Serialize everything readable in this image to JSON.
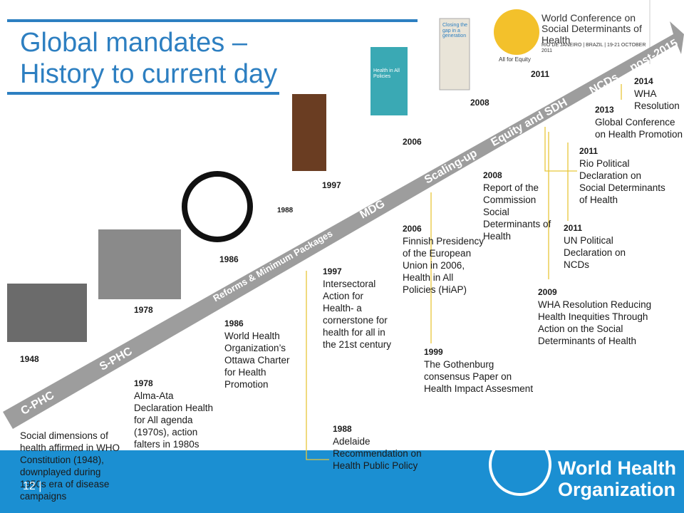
{
  "slide": {
    "title": [
      "Global mandates –",
      "History to current day"
    ],
    "timeline_labels": [
      "C-PHC",
      "S-PHC",
      "Reforms & Minimum Packages",
      "MDG",
      "Scaling-up",
      "Equity and SDH",
      "NCDs",
      "post-2015"
    ],
    "image_years": [
      "1948",
      "1978",
      "1986",
      "1988",
      "1997",
      "2006",
      "2008",
      "2011"
    ],
    "image_texts": [
      "Health in All Policies",
      "Closing the gap in a generation",
      "World Conference on Social Determinants of Health",
      "RIO DE JANEIRO | BRAZIL | 19-21 OCTOBER 2011",
      "All for Equity"
    ],
    "events": [
      {
        "year": null,
        "text": "Social dimensions of health affirmed in WHO Constitution (1948), downplayed during 1950s era of disease campaigns"
      },
      {
        "year": "1978",
        "text": "Alma-Ata Declaration Health for All agenda (1970s), action falters in 1980s"
      },
      {
        "year": "1986",
        "text": "World Health Organization’s Ottawa Charter for Health Promotion"
      },
      {
        "year": "1997",
        "text": "Intersectoral Action for Health- a cornerstone for health for all in the 21st century"
      },
      {
        "year": "1988",
        "text": "Adelaide Recommendation on Health Public Policy"
      },
      {
        "year": "2006",
        "text": "Finnish Presidency of the European Union in 2006, Health in All Policies (HiAP)"
      },
      {
        "year": "1999",
        "text": "The Gothenburg consensus Paper on Health Impact Assesment"
      },
      {
        "year": "2008",
        "text": "Report of the Commission Social Determinants of Health"
      },
      {
        "year": "2009",
        "text": "WHA Resolution Reducing Health Inequities Through Action on the Social Determinants of Health"
      },
      {
        "year": "2011",
        "text": "UN Political Declaration on NCDs"
      },
      {
        "year": "2011",
        "text": "Rio Political Declaration on Social Determinants of Health"
      },
      {
        "year": "2013",
        "text": "Global Conference on Health Promotion"
      },
      {
        "year": "2014",
        "text": "WHA Resolution"
      }
    ],
    "footer": {
      "page": "12 |",
      "logo": [
        "World Health",
        "Organization"
      ]
    }
  }
}
